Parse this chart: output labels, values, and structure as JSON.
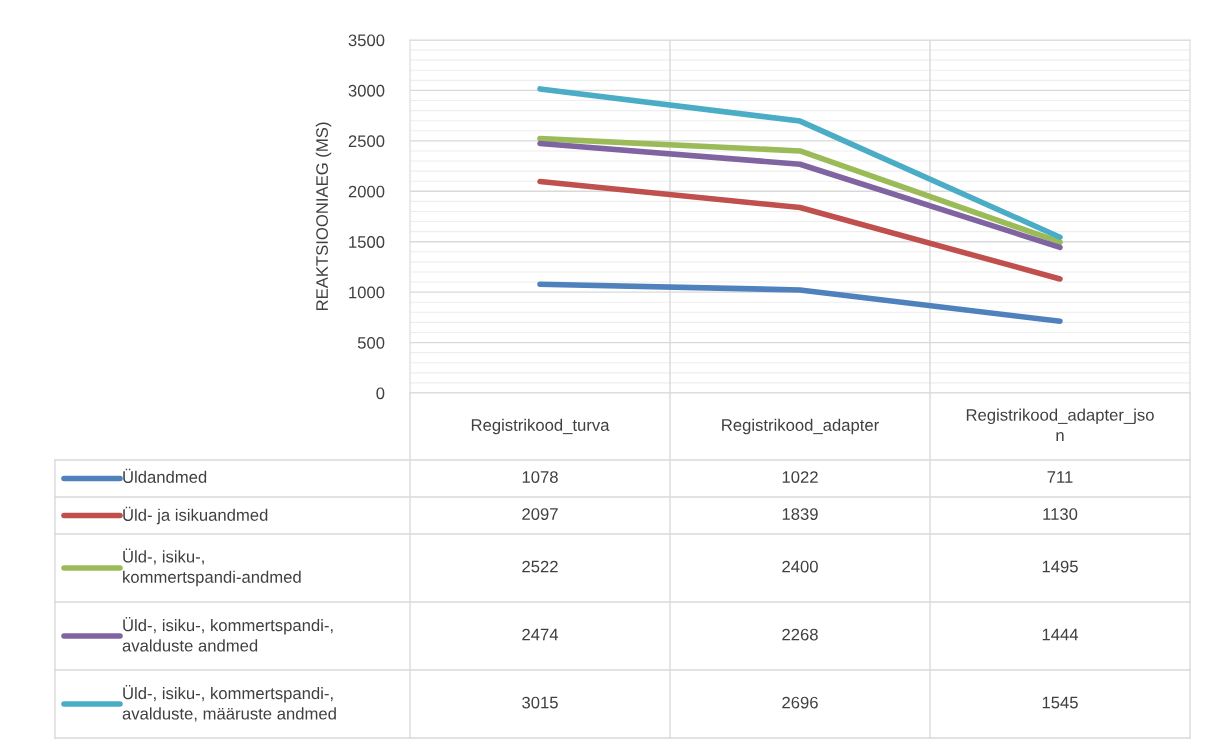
{
  "chart_data": {
    "type": "line",
    "ylabel": "REAKTSIOONIAEG (MS)",
    "categories": [
      "Registrikood_turva",
      "Registrikood_adapter",
      "Registrikood_adapter_json"
    ],
    "series": [
      {
        "name": "Üldandmed",
        "color": "#4f81bd",
        "values": [
          1078,
          1022,
          711
        ]
      },
      {
        "name": "Üld- ja isikuandmed",
        "color": "#c0504d",
        "values": [
          2097,
          1839,
          1130
        ]
      },
      {
        "name": "Üld-, isiku-, kommertspandi-andmed",
        "color": "#9bbb59",
        "values": [
          2522,
          2400,
          1495
        ]
      },
      {
        "name": "Üld-, isiku-, kommertspandi-, avalduste andmed",
        "color": "#8064a2",
        "values": [
          2474,
          2268,
          1444
        ]
      },
      {
        "name": "Üld-, isiku-, kommertspandi-, avalduste, määruste andmed",
        "color": "#4bacc6",
        "values": [
          3015,
          2696,
          1545
        ]
      }
    ],
    "ylim": [
      0,
      3500
    ],
    "yticks": [
      0,
      500,
      1000,
      1500,
      2000,
      2500,
      3000,
      3500
    ],
    "grid": true,
    "legend": "bottom",
    "data_labels": true,
    "marker": "none",
    "line_style": "solid"
  }
}
